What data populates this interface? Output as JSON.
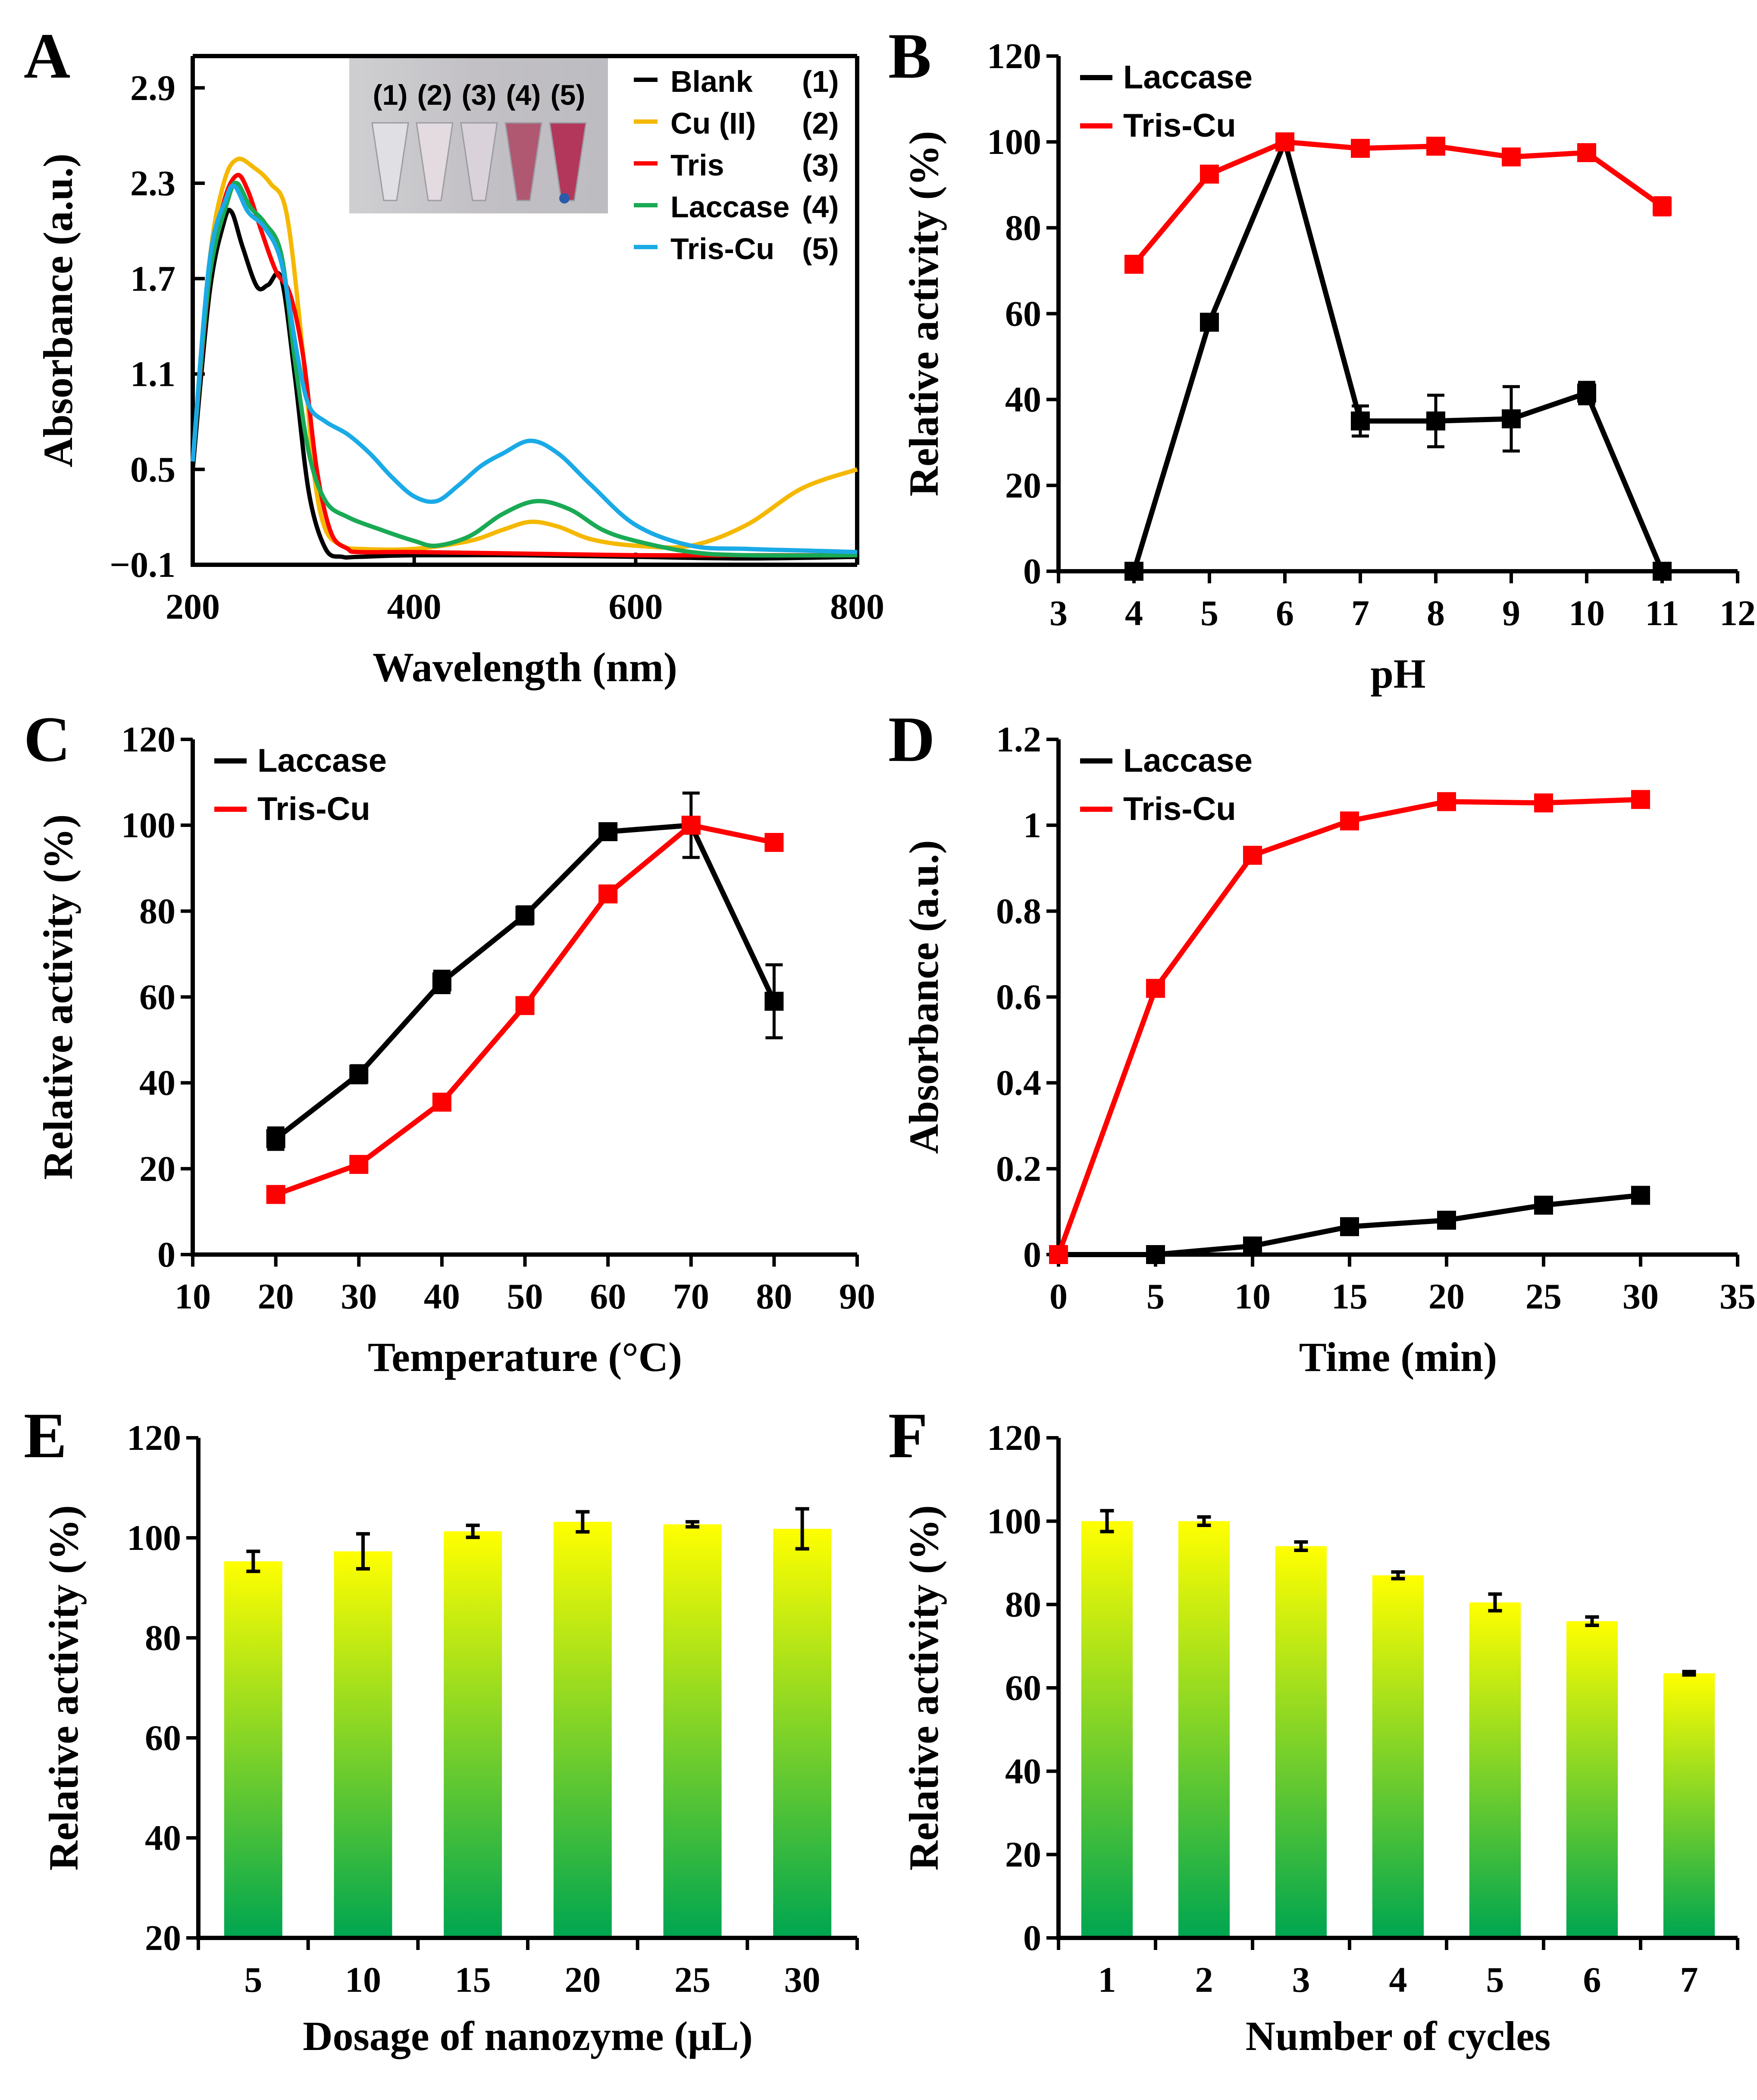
{
  "colors": {
    "black": "#000000",
    "red": "#ff0000",
    "yellow": "#f5b800",
    "green": "#1aaa55",
    "cyan": "#1aaae6",
    "bar_top": "#ffff00",
    "bar_bottom": "#00a650"
  },
  "chart_data": [
    {
      "panel": "A",
      "type": "line",
      "xlabel": "Wavelength (nm)",
      "ylabel": "Absorbance (a.u.)",
      "xlim": [
        200,
        800
      ],
      "ylim": [
        -0.1,
        3.1
      ],
      "xticks": [
        200,
        400,
        600,
        800
      ],
      "yticks": [
        -0.1,
        0.5,
        1.1,
        1.7,
        2.3,
        2.9
      ],
      "ytick_labels": [
        "−0.1",
        "0.5",
        "1.1",
        "1.7",
        "2.3",
        "2.9"
      ],
      "inset_labels": [
        "(1)",
        "(2)",
        "(3)",
        "(4)",
        "(5)"
      ],
      "legend_position": "top-right",
      "series": [
        {
          "name": "Blank",
          "tag": "(1)",
          "color": "#000000",
          "x": [
            200,
            215,
            228,
            235,
            245,
            258,
            268,
            280,
            292,
            305,
            320,
            335,
            350,
            400,
            500,
            600,
            700,
            800
          ],
          "y": [
            0.5,
            1.6,
            2.05,
            2.12,
            1.9,
            1.65,
            1.66,
            1.7,
            1.1,
            0.35,
            0.0,
            -0.05,
            -0.05,
            -0.04,
            -0.04,
            -0.05,
            -0.06,
            -0.05
          ]
        },
        {
          "name": "Cu (II)",
          "tag": "(2)",
          "color": "#f5b800",
          "x": [
            200,
            215,
            228,
            240,
            255,
            270,
            285,
            300,
            310,
            320,
            335,
            350,
            400,
            450,
            480,
            505,
            530,
            560,
            600,
            650,
            700,
            750,
            800
          ],
          "y": [
            0.55,
            1.8,
            2.3,
            2.45,
            2.4,
            2.3,
            2.1,
            1.2,
            0.45,
            0.12,
            0.02,
            0.0,
            0.0,
            0.05,
            0.12,
            0.17,
            0.14,
            0.06,
            0.02,
            0.02,
            0.15,
            0.38,
            0.5
          ]
        },
        {
          "name": "Tris",
          "tag": "(3)",
          "color": "#ff0000",
          "x": [
            200,
            215,
            228,
            240,
            250,
            262,
            275,
            288,
            300,
            312,
            325,
            340,
            350,
            400,
            500,
            600,
            700,
            800
          ],
          "y": [
            0.55,
            1.7,
            2.18,
            2.35,
            2.25,
            2.0,
            1.75,
            1.6,
            1.2,
            0.5,
            0.1,
            0.0,
            -0.02,
            -0.02,
            -0.03,
            -0.04,
            -0.04,
            -0.04
          ]
        },
        {
          "name": "Laccase",
          "tag": "(4)",
          "color": "#1aaa55",
          "x": [
            200,
            215,
            232,
            240,
            252,
            265,
            280,
            292,
            305,
            320,
            340,
            370,
            400,
            420,
            450,
            480,
            510,
            540,
            570,
            600,
            650,
            700,
            800
          ],
          "y": [
            0.55,
            1.7,
            2.2,
            2.3,
            2.15,
            2.05,
            1.85,
            1.2,
            0.6,
            0.3,
            0.2,
            0.12,
            0.05,
            0.02,
            0.08,
            0.22,
            0.3,
            0.25,
            0.12,
            0.05,
            -0.02,
            -0.04,
            -0.04
          ]
        },
        {
          "name": "Tris-Cu",
          "tag": "(5)",
          "color": "#1aaae6",
          "x": [
            200,
            215,
            230,
            238,
            250,
            265,
            280,
            295,
            305,
            320,
            340,
            360,
            380,
            400,
            420,
            440,
            460,
            480,
            505,
            530,
            560,
            600,
            650,
            700,
            750,
            800
          ],
          "y": [
            0.55,
            1.8,
            2.2,
            2.28,
            2.12,
            2.02,
            1.8,
            1.2,
            0.9,
            0.8,
            0.72,
            0.6,
            0.45,
            0.33,
            0.3,
            0.4,
            0.52,
            0.6,
            0.68,
            0.6,
            0.4,
            0.15,
            0.02,
            0.0,
            -0.01,
            -0.02
          ]
        }
      ]
    },
    {
      "panel": "B",
      "type": "line",
      "xlabel": "pH",
      "ylabel": "Relative activity (%)",
      "xlim": [
        3,
        12
      ],
      "ylim": [
        0,
        120
      ],
      "xticks": [
        3,
        4,
        5,
        6,
        7,
        8,
        9,
        10,
        11,
        12
      ],
      "yticks": [
        0,
        20,
        40,
        60,
        80,
        100,
        120
      ],
      "legend_position": "top-left",
      "series": [
        {
          "name": "Laccase",
          "color": "#000000",
          "x": [
            4,
            5,
            6,
            7,
            8,
            9,
            10,
            11
          ],
          "y": [
            0,
            58,
            100,
            35,
            35,
            35.5,
            41.5,
            0
          ],
          "err": [
            0,
            1.5,
            1.5,
            3.5,
            6,
            7.5,
            2.5,
            0
          ]
        },
        {
          "name": "Tris-Cu",
          "color": "#ff0000",
          "x": [
            4,
            5,
            6,
            7,
            8,
            9,
            10,
            11
          ],
          "y": [
            71.5,
            92.5,
            100,
            98.5,
            99,
            96.5,
            97.5,
            85
          ],
          "err": [
            1,
            1,
            1,
            1,
            1,
            1,
            1.5,
            2
          ]
        }
      ]
    },
    {
      "panel": "C",
      "type": "line",
      "xlabel": "Temperature (°C)",
      "ylabel": "Relative activity (%)",
      "xlim": [
        10,
        90
      ],
      "ylim": [
        0,
        120
      ],
      "xticks": [
        10,
        20,
        30,
        40,
        50,
        60,
        70,
        80,
        90
      ],
      "yticks": [
        0,
        20,
        40,
        60,
        80,
        100,
        120
      ],
      "legend_position": "top-left",
      "series": [
        {
          "name": "Laccase",
          "color": "#000000",
          "x": [
            20,
            30,
            40,
            50,
            60,
            70,
            80
          ],
          "y": [
            27,
            42,
            63.5,
            79,
            98.5,
            100,
            59
          ],
          "err": [
            2.5,
            2,
            2.5,
            2,
            1,
            7.5,
            8.5
          ]
        },
        {
          "name": "Tris-Cu",
          "color": "#ff0000",
          "x": [
            20,
            30,
            40,
            50,
            60,
            70,
            80
          ],
          "y": [
            14,
            21,
            35.5,
            58,
            84,
            100,
            96
          ],
          "err": [
            0.8,
            0.8,
            0.8,
            0.8,
            0.8,
            1,
            1
          ]
        }
      ]
    },
    {
      "panel": "D",
      "type": "line",
      "xlabel": "Time (min)",
      "ylabel": "Absorbance (a.u.)",
      "xlim": [
        0,
        35
      ],
      "ylim": [
        0,
        1.2
      ],
      "xticks": [
        0,
        5,
        10,
        15,
        20,
        25,
        30,
        35
      ],
      "yticks": [
        0,
        0.2,
        0.4,
        0.6,
        0.8,
        1,
        1.2
      ],
      "legend_position": "top-left",
      "series": [
        {
          "name": "Laccase",
          "color": "#000000",
          "x": [
            0,
            5,
            10,
            15,
            20,
            25,
            30
          ],
          "y": [
            0,
            0,
            0.02,
            0.065,
            0.08,
            0.115,
            0.138
          ]
        },
        {
          "name": "Tris-Cu",
          "color": "#ff0000",
          "x": [
            0,
            5,
            10,
            15,
            20,
            25,
            30
          ],
          "y": [
            0,
            0.62,
            0.93,
            1.01,
            1.055,
            1.052,
            1.06
          ]
        }
      ]
    },
    {
      "panel": "E",
      "type": "bar",
      "xlabel": "Dosage of nanozyme (μL)",
      "ylabel": "Relative activity (%)",
      "categories": [
        "5",
        "10",
        "15",
        "20",
        "25",
        "30"
      ],
      "values": [
        95.3,
        97.3,
        101.3,
        103.2,
        102.7,
        101.8
      ],
      "errors": [
        2,
        3.5,
        1.2,
        2,
        0.5,
        4
      ],
      "ylim": [
        20,
        120
      ],
      "yticks": [
        20,
        40,
        60,
        80,
        100,
        120
      ]
    },
    {
      "panel": "F",
      "type": "bar",
      "xlabel": "Number of cycles",
      "ylabel": "Relative activity (%)",
      "categories": [
        "1",
        "2",
        "3",
        "4",
        "5",
        "6",
        "7"
      ],
      "values": [
        100,
        100,
        94,
        87,
        80.5,
        76,
        63.5
      ],
      "errors": [
        2.5,
        1,
        1,
        0.8,
        2,
        1,
        0.4
      ],
      "ylim": [
        0,
        120
      ],
      "yticks": [
        0,
        20,
        40,
        60,
        80,
        100,
        120
      ]
    }
  ]
}
